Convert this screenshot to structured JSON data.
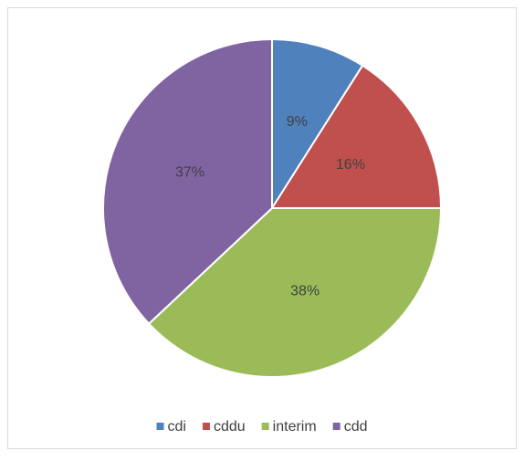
{
  "chart_data": {
    "type": "pie",
    "categories": [
      "cdi",
      "cddu",
      "interim",
      "cdd"
    ],
    "values": [
      9,
      16,
      38,
      37
    ],
    "value_labels": [
      "9%",
      "16%",
      "38%",
      "37%"
    ],
    "colors": [
      "#4f81bd",
      "#c0504d",
      "#9bbb59",
      "#8064a2"
    ],
    "legend": "bottom"
  }
}
